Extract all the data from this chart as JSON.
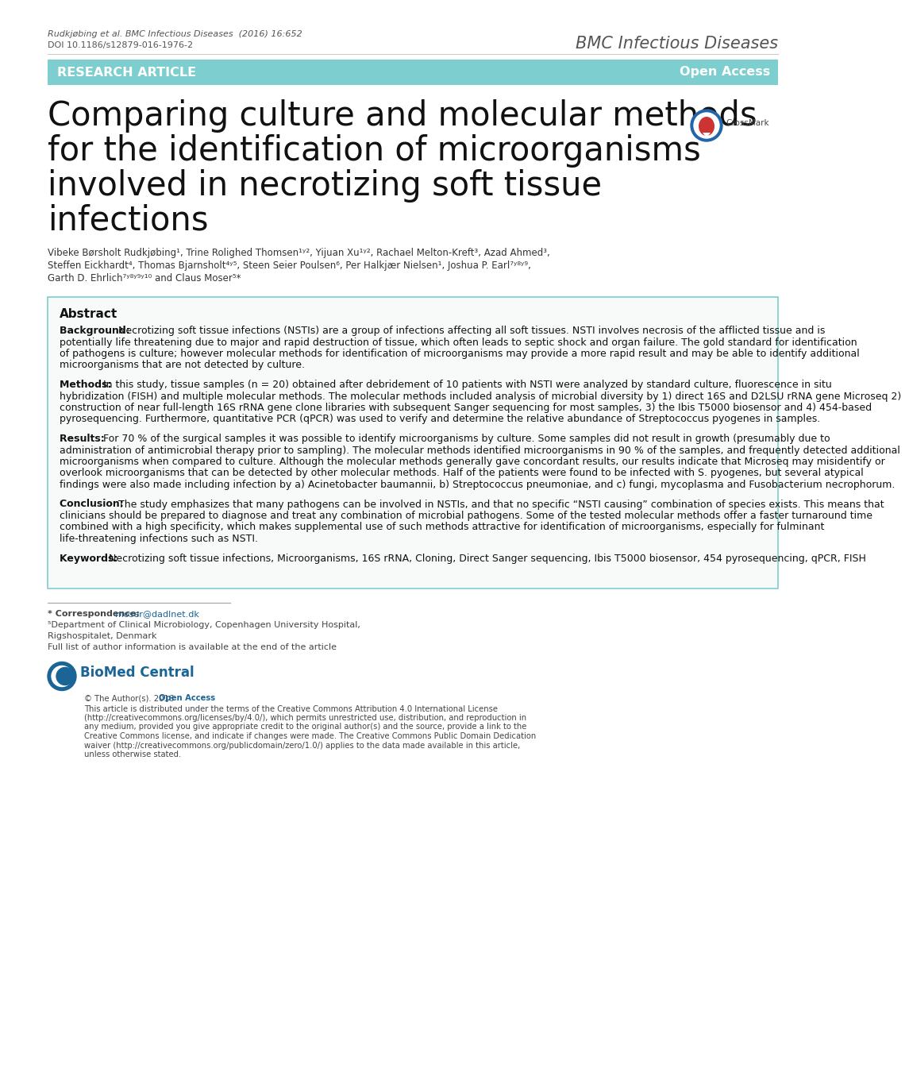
{
  "header_citation": "Rudkjøbing et al. BMC Infectious Diseases  (2016) 16:652",
  "header_doi": "DOI 10.1186/s12879-016-1976-2",
  "header_journal": "BMC Infectious Diseases",
  "banner_text": "RESEARCH ARTICLE",
  "banner_right": "Open Access",
  "banner_color": "#7DCFCF",
  "banner_text_color": "#FFFFFF",
  "title_line1": "Comparing culture and molecular methods",
  "title_line2": "for the identification of microorganisms",
  "title_line3": "involved in necrotizing soft tissue",
  "title_line4": "infections",
  "title_fontsize": 30,
  "author_line1": "Vibeke Børsholt Rudkjøbing¹, Trine Rolighed Thomsen¹ʸ², Yijuan Xu¹ʸ², Rachael Melton-Kreft³, Azad Ahmed³,",
  "author_line2": "Steffen Eickhardt⁴, Thomas Bjarnsholt⁴ʸ⁵, Steen Seier Poulsen⁶, Per Halkjær Nielsen¹, Joshua P. Earl⁷ʸ⁸ʸ⁹,",
  "author_line3": "Garth D. Ehrlich⁷ʸ⁸ʸ⁹ʸ¹⁰ and Claus Moser⁵*",
  "abstract_title": "Abstract",
  "bg_label": "Background:",
  "bg_body": "Necrotizing soft tissue infections (NSTIs) are a group of infections affecting all soft tissues. NSTI involves necrosis of the afflicted tissue and is potentially life threatening due to major and rapid destruction of tissue, which often leads to septic shock and organ failure. The gold standard for identification of pathogens is culture; however molecular methods for identification of microorganisms may provide a more rapid result and may be able to identify additional microorganisms that are not detected by culture.",
  "me_label": "Methods:",
  "me_body": "In this study, tissue samples (n = 20) obtained after debridement of 10 patients with NSTI were analyzed by standard culture, fluorescence in situ hybridization (FISH) and multiple molecular methods. The molecular methods included analysis of microbial diversity by 1) direct 16S and D2LSU rRNA gene Microseq 2) construction of near full-length 16S rRNA gene clone libraries with subsequent Sanger sequencing for most samples, 3) the Ibis T5000 biosensor and 4) 454-based pyrosequencing. Furthermore, quantitative PCR (qPCR) was used to verify and determine the relative abundance of Streptococcus pyogenes in samples.",
  "re_label": "Results:",
  "re_body": "For 70 % of the surgical samples it was possible to identify microorganisms by culture. Some samples did not result in growth (presumably due to administration of antimicrobial therapy prior to sampling). The molecular methods identified microorganisms in 90 % of the samples, and frequently detected additional microorganisms when compared to culture. Although the molecular methods generally gave concordant results, our results indicate that Microseq may misidentify or overlook microorganisms that can be detected by other molecular methods. Half of the patients were found to be infected with S. pyogenes, but several atypical findings were also made including infection by a) Acinetobacter baumannii, b) Streptococcus pneumoniae, and c) fungi, mycoplasma and Fusobacterium necrophorum.",
  "co_label": "Conclusion:",
  "co_body": "The study emphasizes that many pathogens can be involved in NSTIs, and that no specific “NSTI causing” combination of species exists. This means that clinicians should be prepared to diagnose and treat any combination of microbial pathogens. Some of the tested molecular methods offer a faster turnaround time combined with a high specificity, which makes supplemental use of such methods attractive for identification of microorganisms, especially for fulminant life-threatening infections such as NSTI.",
  "kw_label": "Keywords:",
  "kw_body": "Necrotizing soft tissue infections, Microorganisms, 16S rRNA, Cloning, Direct Sanger sequencing, Ibis T5000 biosensor, 454 pyrosequencing, qPCR, FISH",
  "footer_corr_label": "* Correspondence:",
  "footer_corr_link": "moser@dadlnet.dk",
  "footer_dept": "⁵Department of Clinical Microbiology, Copenhagen University Hospital,",
  "footer_hospital": "Rigshospitalet, Denmark",
  "footer_fulllist": "Full list of author information is available at the end of the article",
  "license_line1": "© The Author(s). 2016",
  "license_bold": "Open Access",
  "license_rest": "This article is distributed under the terms of the Creative Commons Attribution 4.0 International License (http://creativecommons.org/licenses/by/4.0/), which permits unrestricted use, distribution, and reproduction in any medium, provided you give appropriate credit to the original author(s) and the source, provide a link to the Creative Commons license, and indicate if changes were made. The Creative Commons Public Domain Dedication waiver (http://creativecommons.org/publicdomain/zero/1.0/) applies to the data made available in this article, unless otherwise stated.",
  "background_color": "#FFFFFF",
  "text_color": "#333333",
  "link_color": "#1a6496",
  "abstract_box_color": "#F8FAFA",
  "abstract_box_border": "#7DCFCF"
}
